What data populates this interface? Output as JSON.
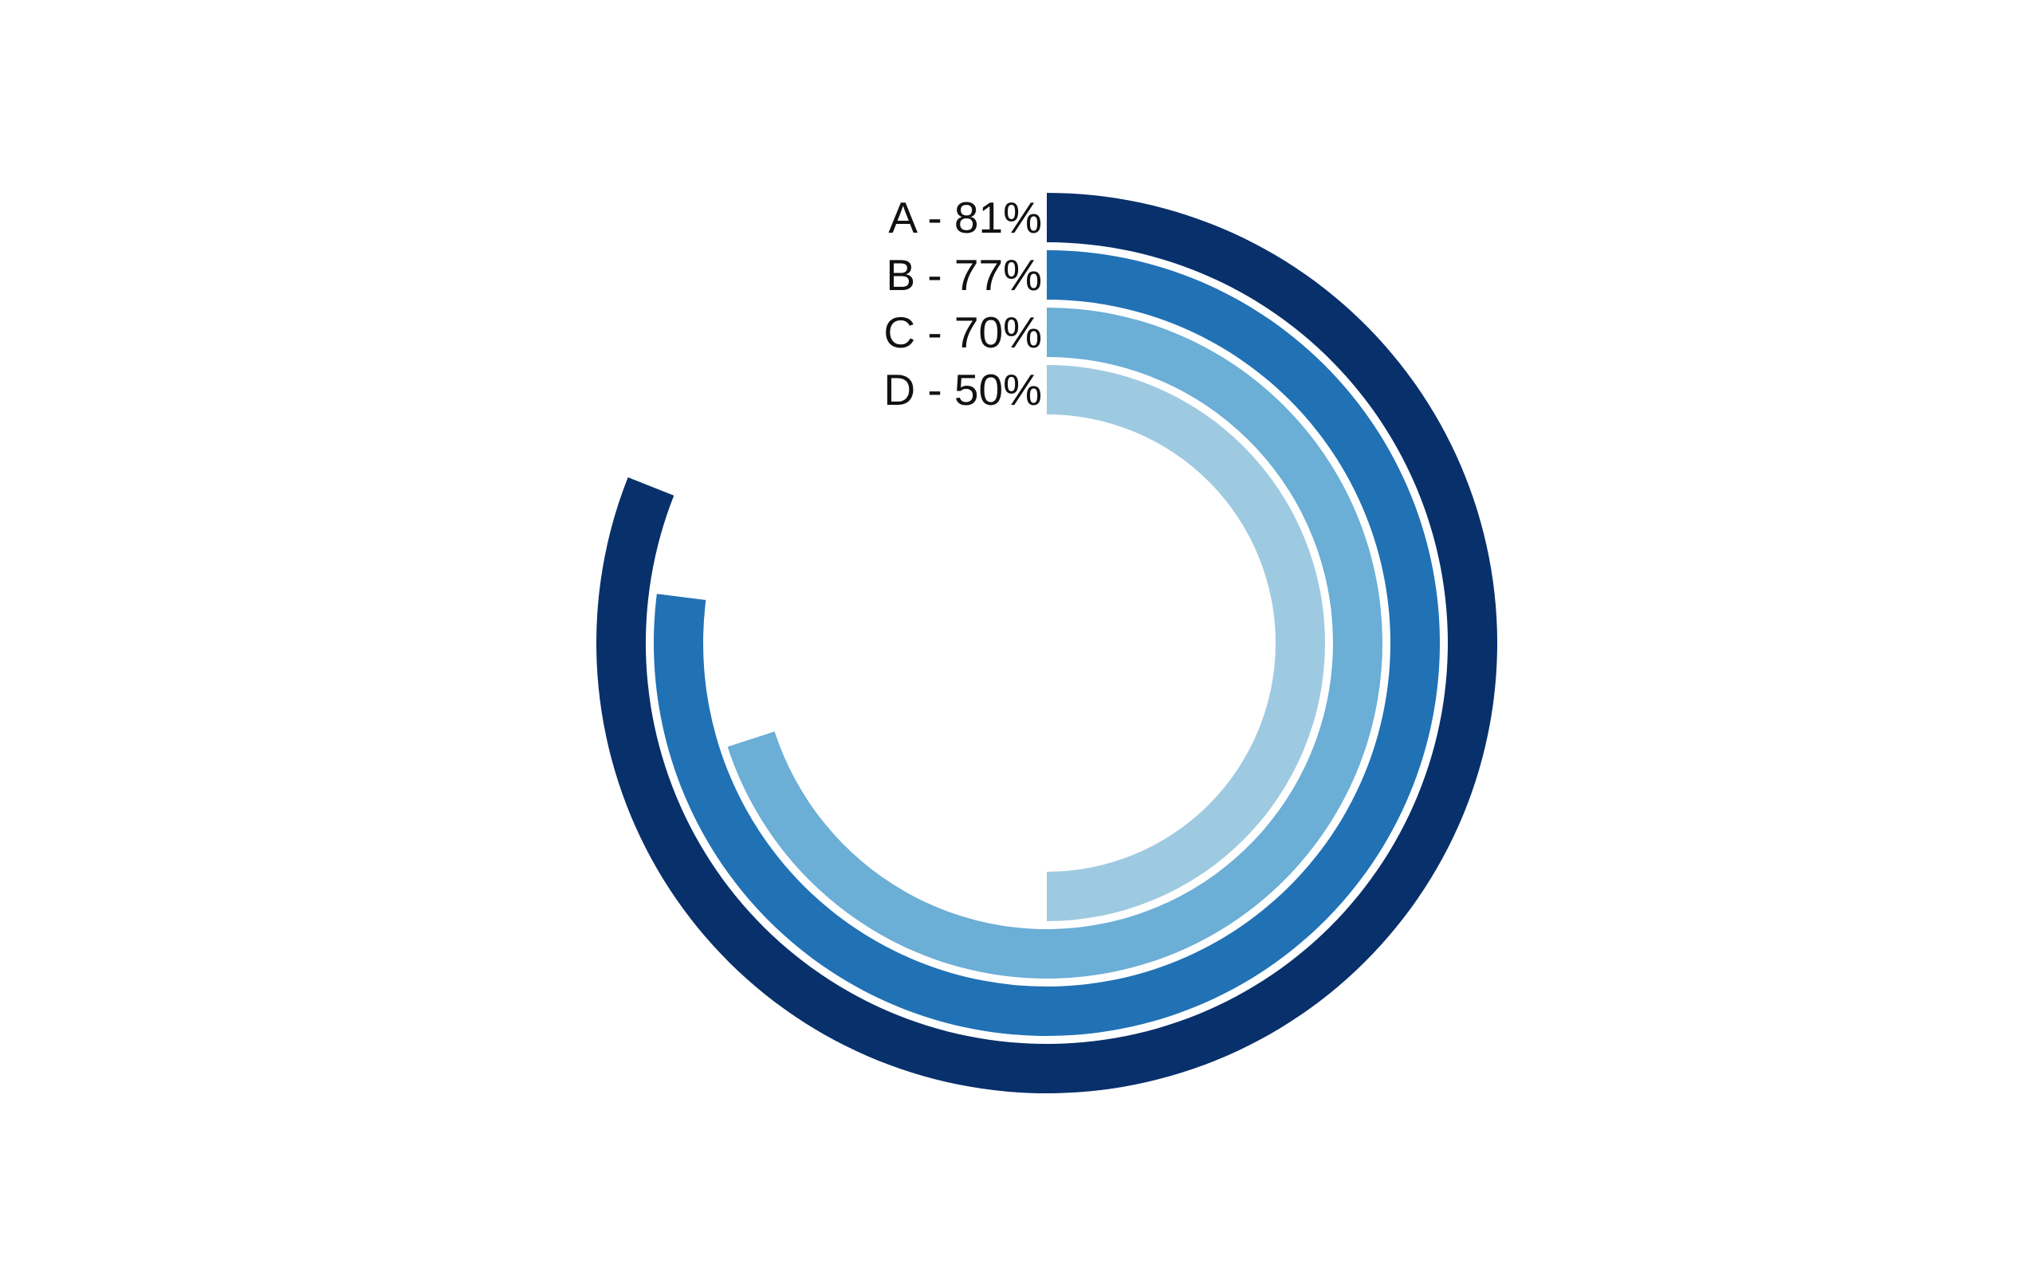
{
  "chart_data": {
    "type": "radial-bar",
    "max_value": 100,
    "start_angle_deg": 0,
    "direction": "clockwise",
    "series": [
      {
        "category": "A",
        "value": 81,
        "label": "A - 81%",
        "color": "#08306b"
      },
      {
        "category": "B",
        "value": 77,
        "label": "B - 77%",
        "color": "#2171b5"
      },
      {
        "category": "C",
        "value": 70,
        "label": "C - 70%",
        "color": "#6baed6"
      },
      {
        "category": "D",
        "value": 50,
        "label": "D - 50%",
        "color": "#9ecae1"
      }
    ],
    "title": "",
    "legend": "none",
    "grid": false
  }
}
